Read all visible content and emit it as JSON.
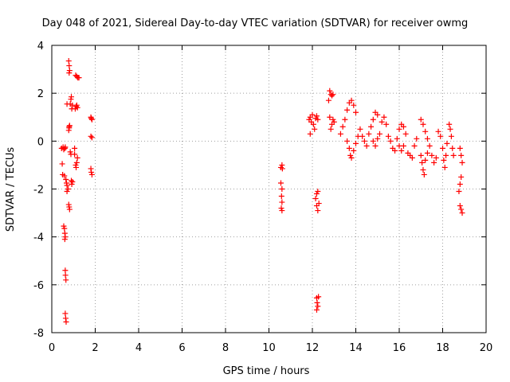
{
  "chart_data": {
    "type": "scatter",
    "title": "Day 048 of 2021, Sidereal Day-to-day VTEC variation (SDTVAR) for receiver owmg",
    "xlabel": "GPS time / hours",
    "ylabel": "SDTVAR / TECUs",
    "xlim": [
      0,
      20
    ],
    "ylim": [
      -8,
      4
    ],
    "xticks": [
      "0",
      "2",
      "4",
      "6",
      "8",
      "10",
      "12",
      "14",
      "16",
      "18",
      "20"
    ],
    "yticks": [
      "-8",
      "-6",
      "-4",
      "-2",
      "0",
      "2",
      "4"
    ],
    "grid": true,
    "marker": "+",
    "color": "#ff0000",
    "series": [
      {
        "name": "SDTVAR",
        "points": [
          [
            0.45,
            -0.3
          ],
          [
            0.48,
            -0.95
          ],
          [
            0.5,
            -1.4
          ],
          [
            0.52,
            -0.25
          ],
          [
            0.55,
            -0.35
          ],
          [
            0.58,
            -1.45
          ],
          [
            0.6,
            -0.3
          ],
          [
            0.62,
            -0.25
          ],
          [
            0.55,
            -3.55
          ],
          [
            0.58,
            -3.65
          ],
          [
            0.6,
            -3.85
          ],
          [
            0.62,
            -4.0
          ],
          [
            0.6,
            -4.1
          ],
          [
            0.62,
            -5.4
          ],
          [
            0.63,
            -5.6
          ],
          [
            0.65,
            -5.8
          ],
          [
            0.62,
            -7.2
          ],
          [
            0.64,
            -7.4
          ],
          [
            0.66,
            -7.55
          ],
          [
            0.65,
            -1.6
          ],
          [
            0.68,
            -1.75
          ],
          [
            0.7,
            -1.85
          ],
          [
            0.7,
            -2.1
          ],
          [
            0.7,
            1.55
          ],
          [
            0.75,
            -2.0
          ],
          [
            0.78,
            -2.65
          ],
          [
            0.8,
            -2.75
          ],
          [
            0.82,
            -2.85
          ],
          [
            0.78,
            0.45
          ],
          [
            0.8,
            0.55
          ],
          [
            0.82,
            0.65
          ],
          [
            0.8,
            0.6
          ],
          [
            0.78,
            3.35
          ],
          [
            0.8,
            3.15
          ],
          [
            0.82,
            2.95
          ],
          [
            0.8,
            2.85
          ],
          [
            0.85,
            -0.45
          ],
          [
            0.88,
            -0.55
          ],
          [
            0.9,
            -1.65
          ],
          [
            0.92,
            -1.8
          ],
          [
            0.95,
            -1.7
          ],
          [
            0.85,
            1.55
          ],
          [
            0.88,
            1.75
          ],
          [
            0.9,
            1.85
          ],
          [
            0.92,
            1.35
          ],
          [
            0.95,
            1.5
          ],
          [
            1.05,
            -0.3
          ],
          [
            1.05,
            -0.55
          ],
          [
            1.1,
            -1.0
          ],
          [
            1.12,
            -1.1
          ],
          [
            1.15,
            -0.9
          ],
          [
            1.18,
            -0.7
          ],
          [
            1.08,
            1.35
          ],
          [
            1.12,
            1.45
          ],
          [
            1.15,
            1.5
          ],
          [
            1.18,
            1.4
          ],
          [
            1.1,
            2.75
          ],
          [
            1.15,
            2.7
          ],
          [
            1.2,
            2.65
          ],
          [
            1.25,
            2.65
          ],
          [
            1.8,
            1.0
          ],
          [
            1.82,
            0.95
          ],
          [
            1.85,
            0.9
          ],
          [
            1.8,
            0.2
          ],
          [
            1.85,
            0.15
          ],
          [
            1.8,
            -1.15
          ],
          [
            1.82,
            -1.3
          ],
          [
            1.85,
            -1.4
          ],
          [
            10.55,
            -1.1
          ],
          [
            10.6,
            -1.0
          ],
          [
            10.62,
            -1.15
          ],
          [
            10.55,
            -1.75
          ],
          [
            10.6,
            -2.0
          ],
          [
            10.58,
            -2.3
          ],
          [
            10.6,
            -2.55
          ],
          [
            10.57,
            -2.8
          ],
          [
            10.6,
            -2.9
          ],
          [
            11.85,
            0.9
          ],
          [
            11.9,
            1.0
          ],
          [
            11.95,
            0.8
          ],
          [
            12.0,
            1.1
          ],
          [
            12.05,
            0.7
          ],
          [
            12.1,
            0.5
          ],
          [
            11.9,
            0.3
          ],
          [
            12.15,
            0.95
          ],
          [
            12.2,
            1.05
          ],
          [
            12.25,
            0.9
          ],
          [
            12.15,
            -2.4
          ],
          [
            12.2,
            -2.2
          ],
          [
            12.25,
            -2.1
          ],
          [
            12.2,
            -2.7
          ],
          [
            12.25,
            -2.9
          ],
          [
            12.3,
            -2.6
          ],
          [
            12.2,
            -6.55
          ],
          [
            12.22,
            -6.75
          ],
          [
            12.25,
            -6.9
          ],
          [
            12.2,
            -7.05
          ],
          [
            12.28,
            -6.5
          ],
          [
            12.75,
            1.7
          ],
          [
            12.8,
            2.1
          ],
          [
            12.85,
            1.95
          ],
          [
            12.9,
            1.9
          ],
          [
            12.95,
            1.95
          ],
          [
            12.8,
            1.0
          ],
          [
            12.85,
            0.5
          ],
          [
            12.9,
            0.7
          ],
          [
            12.95,
            0.9
          ],
          [
            13.0,
            0.8
          ],
          [
            13.3,
            0.3
          ],
          [
            13.4,
            0.6
          ],
          [
            13.5,
            0.9
          ],
          [
            13.6,
            1.3
          ],
          [
            13.7,
            1.6
          ],
          [
            13.8,
            1.7
          ],
          [
            13.9,
            1.5
          ],
          [
            14.0,
            1.2
          ],
          [
            13.6,
            0.0
          ],
          [
            13.7,
            -0.3
          ],
          [
            13.75,
            -0.6
          ],
          [
            13.8,
            -0.7
          ],
          [
            13.9,
            -0.4
          ],
          [
            14.0,
            -0.1
          ],
          [
            14.1,
            0.2
          ],
          [
            14.2,
            0.5
          ],
          [
            14.3,
            0.2
          ],
          [
            14.4,
            0.0
          ],
          [
            14.5,
            -0.2
          ],
          [
            14.6,
            0.3
          ],
          [
            14.7,
            0.6
          ],
          [
            14.8,
            0.9
          ],
          [
            14.9,
            1.2
          ],
          [
            15.0,
            1.1
          ],
          [
            14.8,
            0.0
          ],
          [
            14.9,
            -0.2
          ],
          [
            15.0,
            0.1
          ],
          [
            15.1,
            0.3
          ],
          [
            15.2,
            0.8
          ],
          [
            15.3,
            1.0
          ],
          [
            15.4,
            0.7
          ],
          [
            15.5,
            0.2
          ],
          [
            15.6,
            0.0
          ],
          [
            15.7,
            -0.3
          ],
          [
            15.8,
            -0.4
          ],
          [
            15.9,
            0.1
          ],
          [
            16.0,
            0.5
          ],
          [
            16.1,
            0.7
          ],
          [
            16.2,
            0.6
          ],
          [
            16.3,
            0.3
          ],
          [
            16.0,
            -0.2
          ],
          [
            16.1,
            -0.4
          ],
          [
            16.2,
            -0.2
          ],
          [
            16.4,
            -0.5
          ],
          [
            16.5,
            -0.6
          ],
          [
            16.6,
            -0.7
          ],
          [
            16.7,
            -0.2
          ],
          [
            16.8,
            0.1
          ],
          [
            17.0,
            0.9
          ],
          [
            17.1,
            0.7
          ],
          [
            17.2,
            0.4
          ],
          [
            17.3,
            0.1
          ],
          [
            17.4,
            -0.2
          ],
          [
            17.5,
            -0.6
          ],
          [
            17.6,
            -0.9
          ],
          [
            17.7,
            -0.7
          ],
          [
            17.0,
            -0.6
          ],
          [
            17.05,
            -0.9
          ],
          [
            17.1,
            -1.2
          ],
          [
            17.15,
            -1.4
          ],
          [
            17.2,
            -0.8
          ],
          [
            17.3,
            -0.5
          ],
          [
            17.8,
            0.4
          ],
          [
            17.9,
            0.2
          ],
          [
            18.0,
            -0.3
          ],
          [
            18.05,
            -0.8
          ],
          [
            18.1,
            -1.1
          ],
          [
            18.15,
            -0.6
          ],
          [
            18.2,
            -0.1
          ],
          [
            18.3,
            0.7
          ],
          [
            18.35,
            0.5
          ],
          [
            18.4,
            0.2
          ],
          [
            18.45,
            -0.3
          ],
          [
            18.5,
            -0.6
          ],
          [
            18.8,
            -0.3
          ],
          [
            18.85,
            -0.6
          ],
          [
            18.9,
            -0.9
          ],
          [
            18.85,
            -1.5
          ],
          [
            18.8,
            -1.8
          ],
          [
            18.75,
            -2.1
          ],
          [
            18.8,
            -2.7
          ],
          [
            18.85,
            -2.85
          ],
          [
            18.9,
            -3.0
          ]
        ]
      }
    ]
  }
}
